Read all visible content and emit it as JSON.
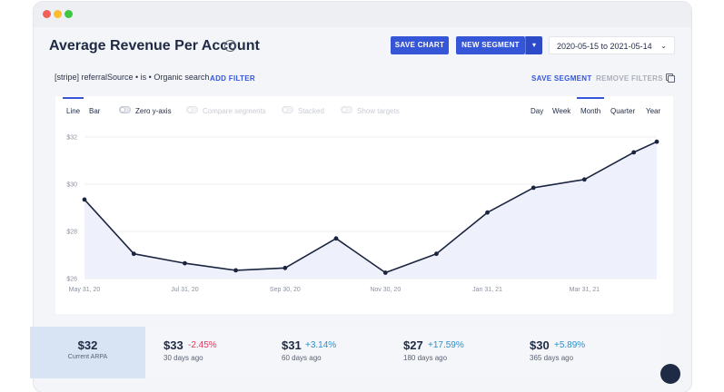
{
  "page": {
    "title": "Average Revenue Per Account",
    "help_icon": "?",
    "save_chart": "SAVE CHART",
    "new_segment": "NEW SEGMENT",
    "date_range": "2020-05-15 to 2021-05-14"
  },
  "filters": {
    "active_filter": "[stripe] referralSource • is • Organic search",
    "add_filter": "ADD FILTER",
    "save_segment": "SAVE SEGMENT",
    "remove_filters": "REMOVE FILTERS"
  },
  "chart_controls": {
    "line": "Line",
    "bar": "Bar",
    "zero_y_axis": "Zero y-axis",
    "compare_segments": "Compare segments",
    "stacked": "Stacked",
    "show_targets": "Show targets",
    "periods": [
      "Day",
      "Week",
      "Month",
      "Quarter",
      "Year"
    ],
    "active_period": "Month",
    "active_type": "Line"
  },
  "colors": {
    "accent": "#3656d8",
    "line": "#1b2540",
    "area": "#eef0fb",
    "negative": "#e0365a",
    "positive": "#2b8fc9"
  },
  "chart_data": {
    "type": "area",
    "x": [
      "2020-05-31",
      "2020-06-30",
      "2020-07-31",
      "2020-08-31",
      "2020-09-30",
      "2020-10-31",
      "2020-11-30",
      "2020-12-31",
      "2021-01-31",
      "2021-02-28",
      "2021-03-31",
      "2021-04-30",
      "2021-05-14"
    ],
    "y": [
      29.35,
      27.05,
      26.65,
      26.35,
      26.45,
      27.7,
      26.25,
      27.05,
      28.8,
      29.85,
      30.2,
      31.35,
      31.8
    ],
    "x_tick_labels": [
      "May 31, 20",
      "Jul 31, 20",
      "Sep 30, 20",
      "Nov 30, 20",
      "Jan 31, 21",
      "Mar 31, 21"
    ],
    "x_tick_indices": [
      0,
      2,
      4,
      6,
      8,
      10
    ],
    "y_ticks": [
      26,
      28,
      30,
      32
    ],
    "y_tick_labels": [
      "$26",
      "$28",
      "$30",
      "$32"
    ],
    "ylim": [
      26,
      32
    ],
    "grid": true,
    "title": "",
    "xlabel": "",
    "ylabel": ""
  },
  "stats": {
    "current": {
      "value": "$32",
      "label": "Current ARPA"
    },
    "items": [
      {
        "value": "$33",
        "change": "-2.45%",
        "direction": "negative",
        "label": "30 days ago"
      },
      {
        "value": "$31",
        "change": "+3.14%",
        "direction": "positive",
        "label": "60 days ago"
      },
      {
        "value": "$27",
        "change": "+17.59%",
        "direction": "positive",
        "label": "180 days ago"
      },
      {
        "value": "$30",
        "change": "+5.89%",
        "direction": "positive",
        "label": "365 days ago"
      }
    ]
  }
}
